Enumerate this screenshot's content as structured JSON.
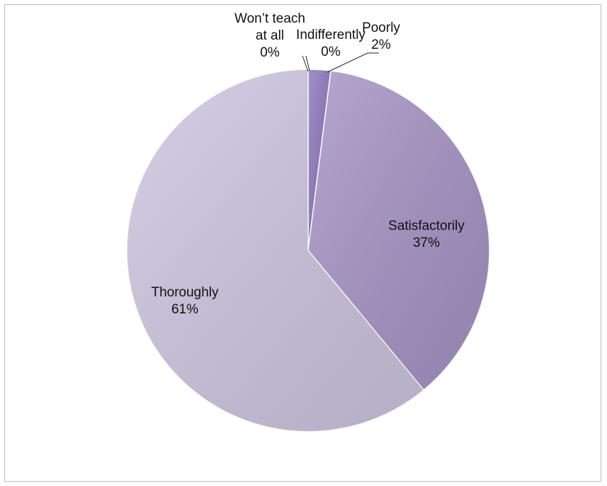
{
  "chart_data": {
    "type": "pie",
    "title": "",
    "slices": [
      {
        "name": "Poorly",
        "value": 2,
        "label_pct": "2%",
        "color": "#8e78bd"
      },
      {
        "name": "Satisfactorily",
        "value": 37,
        "label_pct": "37%",
        "color": "#a694c6"
      },
      {
        "name": "Thoroughly",
        "value": 61,
        "label_pct": "61%",
        "color": "#cfc6e0"
      },
      {
        "name": "Won’t teach at all",
        "value": 0,
        "label_pct": "0%",
        "color": "#7a66a8"
      },
      {
        "name": "Indifferently",
        "value": 0,
        "label_pct": "0%",
        "color": "#9b88c2"
      }
    ],
    "start_angle_deg": 0,
    "direction": "clockwise",
    "legend": "none",
    "label_style": "category name and percentage"
  }
}
